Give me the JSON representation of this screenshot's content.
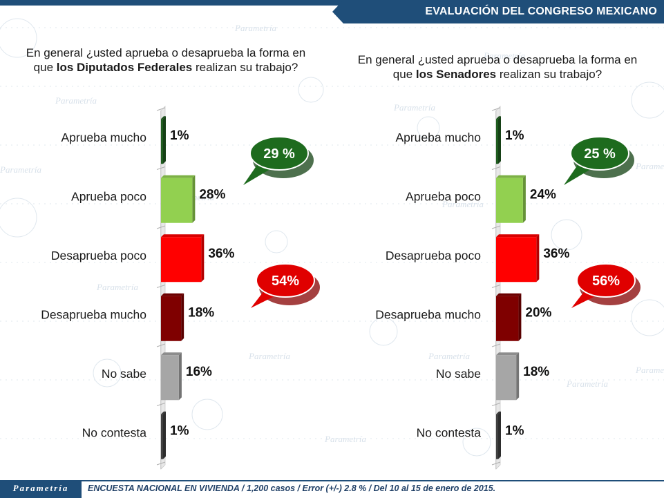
{
  "header": {
    "title": "EVALUACIÓN DEL CONGRESO MEXICANO"
  },
  "watermark": "Parametría",
  "footer": {
    "logo": "Parametría",
    "text": "ENCUESTA NACIONAL EN VIVIENDA / 1,200 casos / Error (+/-) 2.8 % / Del 10 al 15 de enero de 2015."
  },
  "colors": {
    "brand": "#1f4e79",
    "aprueba_mucho": "#1f5c1f",
    "aprueba_poco": "#92d050",
    "desaprueba_poco": "#ff0000",
    "desaprueba_mucho": "#7f0000",
    "no_sabe": "#a6a6a6",
    "no_contesta": "#404040",
    "bubble_green": "#1e6b1e",
    "bubble_red": "#e00000"
  },
  "left_question": {
    "pre": "En general ¿usted aprueba o desaprueba la forma en que ",
    "bold": "los Diputados Federales",
    "post": " realizan su trabajo?"
  },
  "right_question": {
    "pre": "En general ¿usted aprueba o desaprueba la forma en que ",
    "bold": "los Senadores",
    "post": " realizan su trabajo?"
  },
  "chart_data": [
    {
      "type": "bar",
      "categories": [
        "Aprueba mucho",
        "Aprueba poco",
        "Desaprueba poco",
        "Desaprueba mucho",
        "No sabe",
        "No contesta"
      ],
      "values": [
        1,
        28,
        36,
        18,
        16,
        1
      ],
      "value_labels": [
        "1%",
        "28%",
        "36%",
        "18%",
        "16%",
        "1%"
      ],
      "callouts": [
        {
          "label": "29 %",
          "type": "approve"
        },
        {
          "label": "54%",
          "type": "disapprove"
        }
      ]
    },
    {
      "type": "bar",
      "categories": [
        "Aprueba mucho",
        "Aprueba poco",
        "Desaprueba poco",
        "Desaprueba mucho",
        "No sabe",
        "No contesta"
      ],
      "values": [
        1,
        24,
        36,
        20,
        18,
        1
      ],
      "value_labels": [
        "1%",
        "24%",
        "36%",
        "20%",
        "18%",
        "1%"
      ],
      "callouts": [
        {
          "label": "25 %",
          "type": "approve"
        },
        {
          "label": "56%",
          "type": "disapprove"
        }
      ]
    }
  ]
}
